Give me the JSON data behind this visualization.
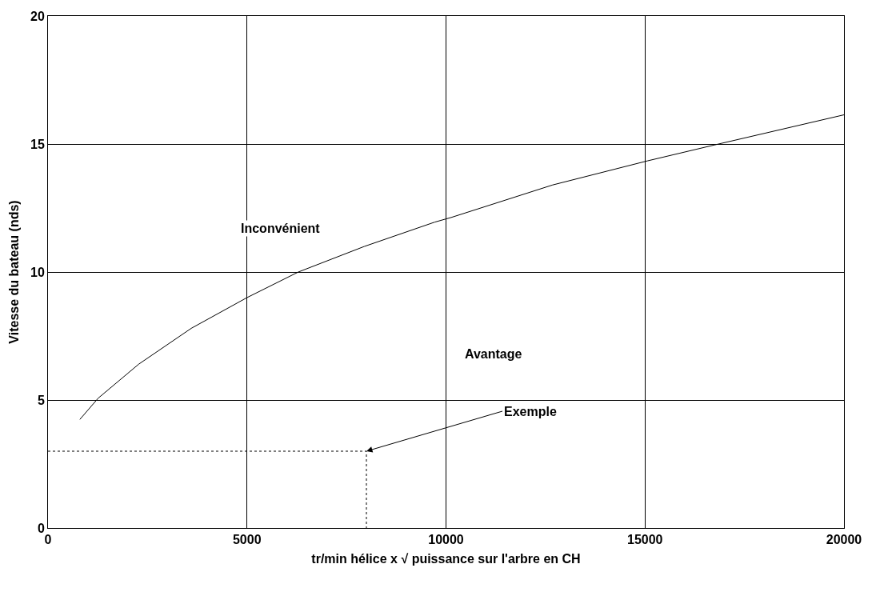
{
  "chart_data": {
    "type": "line",
    "xlabel": "tr/min hélice x √ puissance sur l'arbre en CH",
    "ylabel": "Vitesse du bateau (nds)",
    "series": [
      {
        "color": "#000000",
        "line_style": "solid",
        "x": [
          800,
          1260,
          2280,
          3600,
          5000,
          6290,
          7950,
          9720,
          10130,
          12680,
          15060,
          16740,
          20000
        ],
        "values": [
          4.24,
          5.07,
          6.4,
          7.8,
          9.0,
          10.0,
          11.0,
          11.95,
          12.13,
          13.4,
          14.34,
          14.96,
          16.14
        ]
      },
      {
        "color": "#000000",
        "line_style": "dotted",
        "x": [
          0,
          8000,
          8000
        ],
        "values": [
          3,
          3,
          0
        ]
      }
    ],
    "annotations": [
      "Inconvénient",
      "Avantage",
      {
        "text": "Exemple",
        "x": 8000,
        "y": 3
      }
    ],
    "xlim": [
      0,
      20000
    ],
    "xticks": [
      0,
      5000,
      10000,
      15000,
      20000
    ],
    "ylim": [
      0,
      20
    ],
    "yticks": [
      0,
      5,
      10,
      15,
      20
    ],
    "grid": true,
    "marker": "none"
  }
}
